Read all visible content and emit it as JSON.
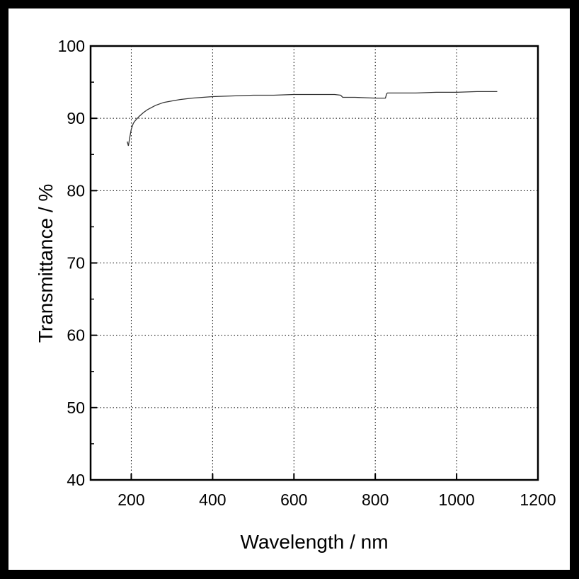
{
  "chart_data": {
    "type": "line",
    "xlabel": "Wavelength / nm",
    "ylabel": "Transmittance / %",
    "xlim": [
      100,
      1200
    ],
    "ylim": [
      40,
      100
    ],
    "x_ticks": [
      200,
      400,
      600,
      800,
      1000,
      1200
    ],
    "y_ticks": [
      40,
      50,
      60,
      70,
      80,
      90,
      100
    ],
    "grid": true,
    "legend": "none",
    "line_color": "#333333",
    "series": [
      {
        "x": [
          190,
          193,
          196,
          200,
          205,
          210,
          220,
          230,
          240,
          250,
          260,
          280,
          300,
          320,
          350,
          400,
          450,
          500,
          550,
          600,
          650,
          700,
          715,
          720,
          750,
          800,
          825,
          828,
          830,
          850,
          900,
          950,
          1000,
          1050,
          1100
        ],
        "y": [
          86.8,
          86.2,
          87.3,
          88.5,
          89.3,
          89.7,
          90.3,
          90.8,
          91.2,
          91.5,
          91.8,
          92.2,
          92.4,
          92.6,
          92.8,
          93.0,
          93.1,
          93.2,
          93.2,
          93.3,
          93.3,
          93.3,
          93.2,
          92.9,
          92.9,
          92.8,
          92.8,
          93.4,
          93.5,
          93.5,
          93.5,
          93.6,
          93.6,
          93.7,
          93.7
        ]
      }
    ]
  }
}
